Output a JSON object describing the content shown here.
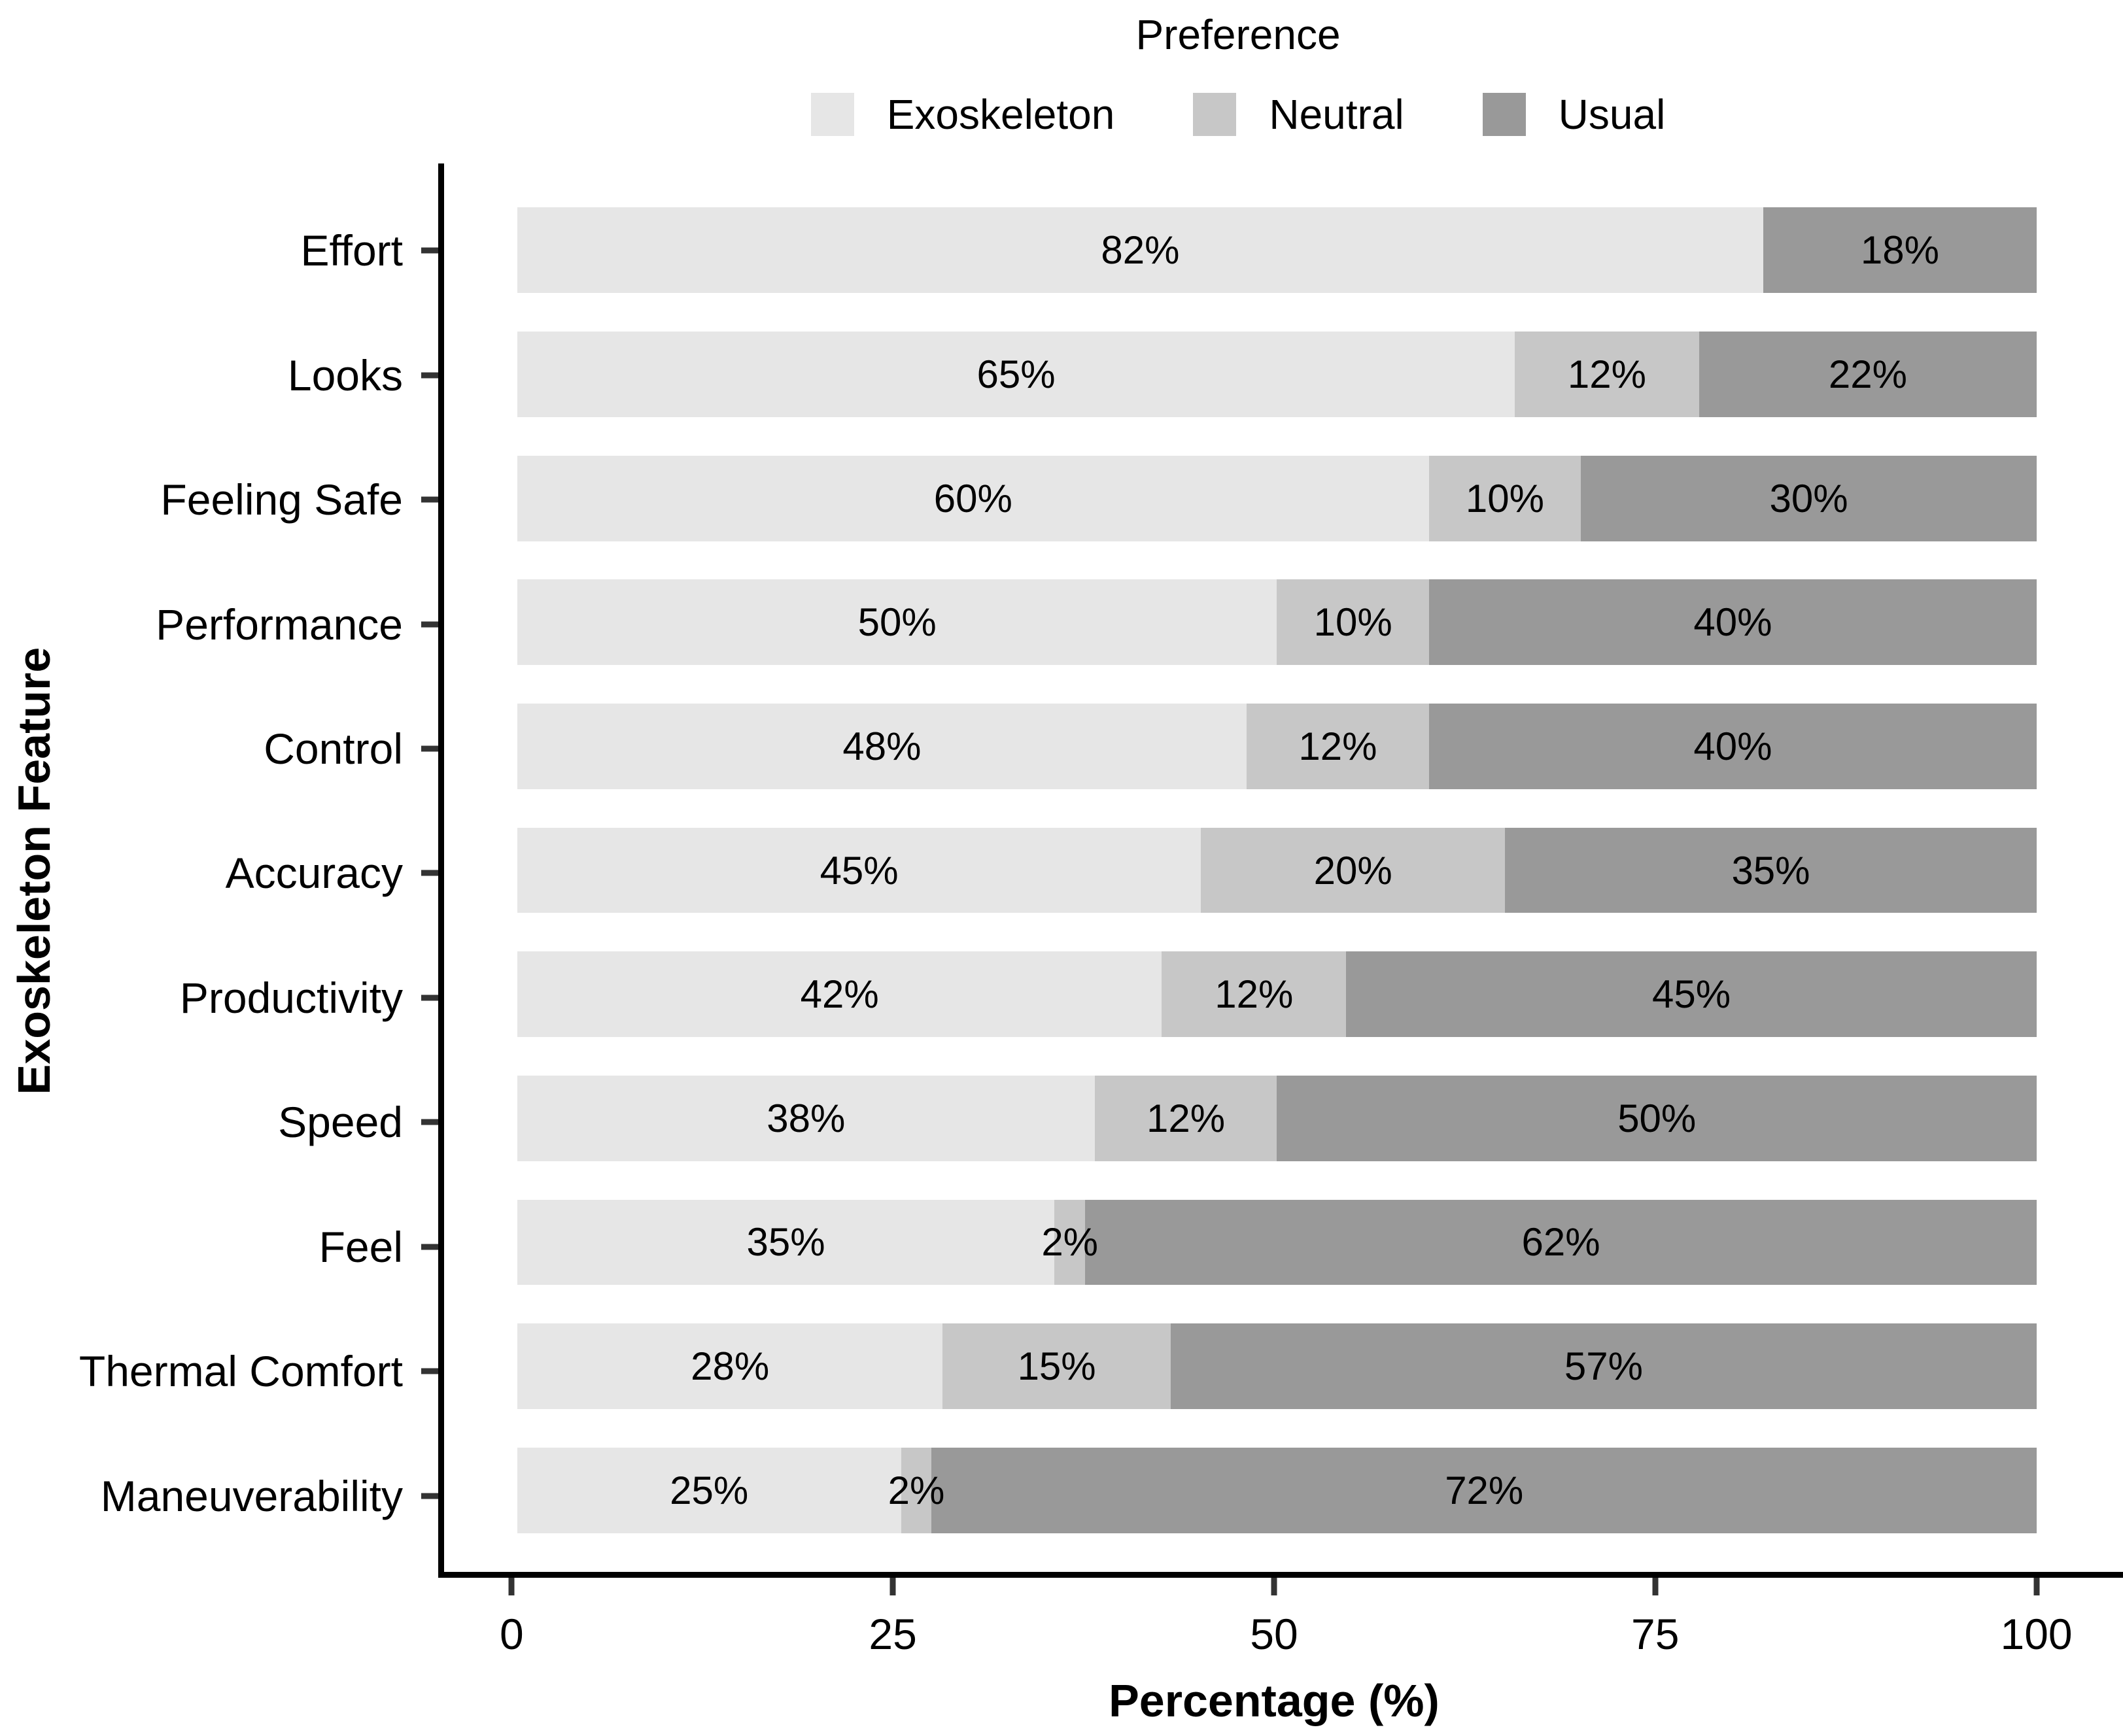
{
  "chart_data": {
    "type": "bar",
    "orientation": "horizontal",
    "stacked": true,
    "normalized_to_100": true,
    "legend_title": "Preference",
    "legend_position": "top",
    "xlabel": "Percentage (%)",
    "ylabel": "Exoskeleton Feature",
    "xlim": [
      0,
      100
    ],
    "xticks": [
      0,
      25,
      50,
      75,
      100
    ],
    "grid": false,
    "value_suffix": "%",
    "categories": [
      "Effort",
      "Looks",
      "Feeling Safe",
      "Performance",
      "Control",
      "Accuracy",
      "Productivity",
      "Speed",
      "Feel",
      "Thermal Comfort",
      "Maneuverability"
    ],
    "series": [
      {
        "name": "Exoskeleton",
        "color": "#E6E6E6",
        "values": [
          82,
          65,
          60,
          50,
          48,
          45,
          42,
          38,
          35,
          28,
          25
        ]
      },
      {
        "name": "Neutral",
        "color": "#C7C7C7",
        "values": [
          0,
          12,
          10,
          10,
          12,
          20,
          12,
          12,
          2,
          15,
          2
        ]
      },
      {
        "name": "Usual",
        "color": "#999999",
        "values": [
          18,
          22,
          30,
          40,
          40,
          35,
          45,
          50,
          62,
          57,
          72
        ]
      }
    ],
    "axis_line_color": "#000000",
    "tick_color": "#333333",
    "label_color": "#000000"
  }
}
